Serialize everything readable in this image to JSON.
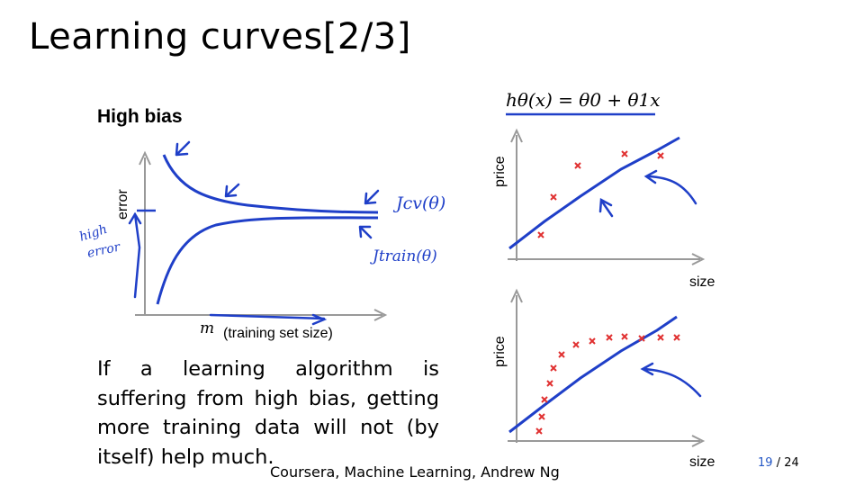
{
  "slide": {
    "title": "Learning curves[2/3]",
    "footer": "Coursera, Machine Learning, Andrew Ng",
    "page_current": "19",
    "page_total": "/ 24"
  },
  "left_plot": {
    "heading": "High bias",
    "y_label": "error",
    "x_symbol": "m",
    "x_label": "(training set size)",
    "annotation_high_error": [
      "high",
      "error"
    ],
    "annotation_jcv": "Jcv(θ)",
    "annotation_jtrain": "Jtrain(θ)"
  },
  "paragraph": "If a learning algorithm is suffering from high bias, getting more training data will not (by itself) help much.",
  "right_top_plot": {
    "equation": "hθ(x) = θ0 + θ1x",
    "y_label": "price",
    "x_label": "size"
  },
  "right_bottom_plot": {
    "y_label": "price",
    "x_label": "size"
  },
  "colors": {
    "ink": "#1f3fc8",
    "points": "#e03030",
    "axis": "#999999",
    "page_accent": "#2457c5"
  }
}
